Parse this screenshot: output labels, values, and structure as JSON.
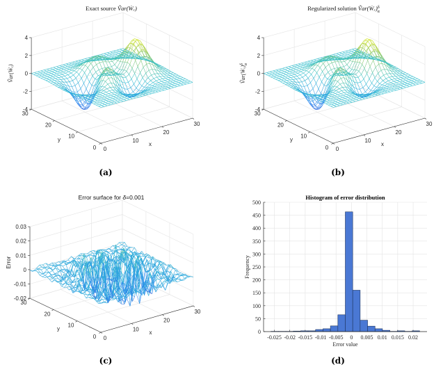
{
  "figure": {
    "panel_labels": [
      "(a)",
      "(b)",
      "(c)",
      "(d)"
    ]
  },
  "colors": {
    "colormap": "parula",
    "colormap_stops": [
      "#3e26a8",
      "#2e87f0",
      "#2fbecf",
      "#9fc94a",
      "#f9fb15"
    ],
    "grid": "#e3e3e3",
    "axis": "#262626",
    "bar_fill": "#4a78d4",
    "bar_edge": "#1f355f"
  },
  "chart_data": [
    {
      "type": "surface",
      "style": "mesh",
      "title": {
        "text": "Exact source ",
        "math": "Ṽar(Ẇₓ)",
        "sup": "",
        "sub": ""
      },
      "xlabel": "x",
      "ylabel": "y",
      "zlabel": "Ṽar(Ẇₓ)",
      "zlabel_sup": "",
      "zlabel_sub": "",
      "xlim": [
        0,
        30
      ],
      "ylim": [
        0,
        30
      ],
      "zlim": [
        -4,
        4
      ],
      "xticks": [
        "0",
        "10",
        "20",
        "30"
      ],
      "yticks": [
        "0",
        "10",
        "20",
        "30"
      ],
      "zticks": [
        "-4",
        "-2",
        "0",
        "2",
        "4"
      ],
      "grid": true
    },
    {
      "type": "surface",
      "style": "mesh",
      "title": {
        "text": "Regularized solution ",
        "math": "Ṽar(Ẇₓ)",
        "sup": "δ",
        "sub": "α"
      },
      "xlabel": "x",
      "ylabel": "y",
      "zlabel": "Ṽar(Ẇₓ)",
      "zlabel_sup": "δ",
      "zlabel_sub": "α",
      "xlim": [
        0,
        30
      ],
      "ylim": [
        0,
        30
      ],
      "zlim": [
        -4,
        4
      ],
      "xticks": [
        "0",
        "10",
        "20",
        "30"
      ],
      "yticks": [
        "0",
        "10",
        "20",
        "30"
      ],
      "zticks": [
        "-4",
        "-2",
        "0",
        "2",
        "4"
      ],
      "grid": true
    },
    {
      "type": "surface",
      "style": "mesh",
      "title": {
        "text": "Error surface for ",
        "math": "δ",
        "sup": "",
        "sub": "",
        "suffix": "=0.001"
      },
      "xlabel": "x",
      "ylabel": "y",
      "zlabel": "Error",
      "zlabel_sup": "",
      "zlabel_sub": "",
      "xlim": [
        0,
        30
      ],
      "ylim": [
        0,
        30
      ],
      "zlim": [
        -0.02,
        0.03
      ],
      "xticks": [
        "0",
        "10",
        "20",
        "30"
      ],
      "yticks": [
        "0",
        "10",
        "20",
        "30"
      ],
      "zticks": [
        "-0.02",
        "-0.01",
        "0",
        "0.01",
        "0.02",
        "0.03"
      ],
      "grid": true
    },
    {
      "type": "bar",
      "subtype": "histogram",
      "title": "Histogram of error distribution",
      "xlabel": "Error value",
      "ylabel": "Frequency",
      "xlim": [
        -0.0285,
        0.0245
      ],
      "ylim": [
        0,
        500
      ],
      "xticks": [
        -0.025,
        -0.02,
        -0.015,
        -0.01,
        -0.005,
        0,
        0.005,
        0.01,
        0.015,
        0.02
      ],
      "xtick_labels": [
        "-0.025",
        "-0.02",
        "-0.015",
        "-0.01",
        "-0.005",
        "0",
        "0.005",
        "0.01",
        "0.015",
        "0.02"
      ],
      "yticks": [
        0,
        50,
        100,
        150,
        200,
        250,
        300,
        350,
        400,
        450,
        500
      ],
      "ytick_labels": [
        "0",
        "50",
        "100",
        "150",
        "200",
        "250",
        "300",
        "350",
        "400",
        "450",
        "500"
      ],
      "bin_start": -0.0261,
      "bin_width": 0.00241,
      "values": [
        1,
        1,
        1,
        2,
        3,
        3,
        8,
        11,
        22,
        65,
        463,
        160,
        44,
        21,
        11,
        5,
        1,
        3,
        1,
        3
      ],
      "grid": true
    }
  ]
}
